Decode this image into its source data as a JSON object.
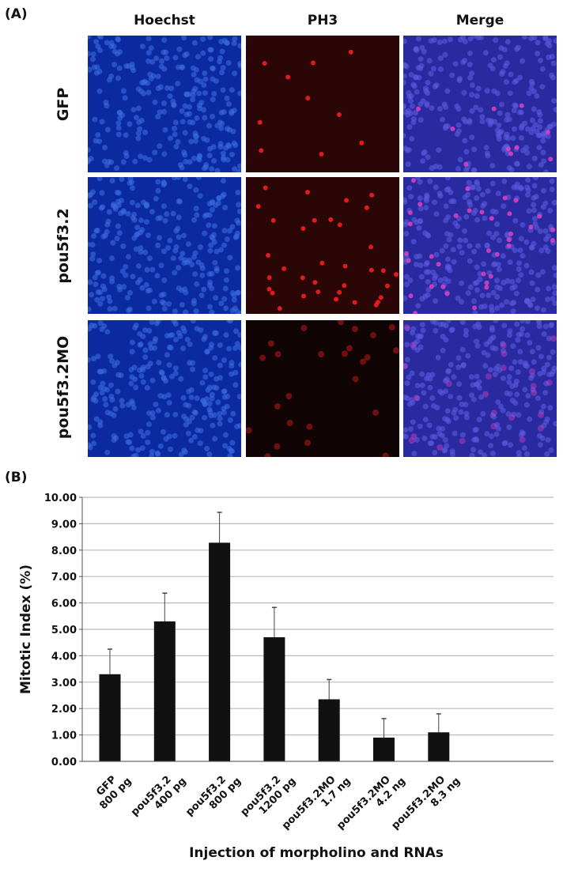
{
  "panel_a": {
    "label": "(A)",
    "columns": [
      "Hoechst",
      "PH3",
      "Merge"
    ],
    "rows": [
      "GFP",
      "pou5f3.2",
      "pou5f3.2MO"
    ]
  },
  "panel_b": {
    "label": "(B)"
  },
  "chart_data": {
    "type": "bar",
    "title": "",
    "xlabel": "Injection of morpholino and RNAs",
    "ylabel": "Mitotic Index (%)",
    "ylim": [
      0,
      10
    ],
    "yticks": [
      "0.00",
      "1.00",
      "2.00",
      "3.00",
      "4.00",
      "5.00",
      "6.00",
      "7.00",
      "8.00",
      "9.00",
      "10.00"
    ],
    "grid": true,
    "categories": [
      [
        "GFP",
        "800 pg"
      ],
      [
        "pou5f3.2",
        "400 pg"
      ],
      [
        "pou5f3.2",
        "800 pg"
      ],
      [
        "pou5f3.2",
        "1200 pg"
      ],
      [
        "pou5f3.2MO",
        "1.7 ng"
      ],
      [
        "pou5f3.2MO",
        "4.2 ng"
      ],
      [
        "pou5f3.2MO",
        "8.3 ng"
      ]
    ],
    "values": [
      3.3,
      5.3,
      8.28,
      4.7,
      2.35,
      0.9,
      1.1
    ],
    "error_upper": [
      0.95,
      1.07,
      1.15,
      1.13,
      0.75,
      0.72,
      0.7
    ],
    "bar_color": "#111111"
  }
}
